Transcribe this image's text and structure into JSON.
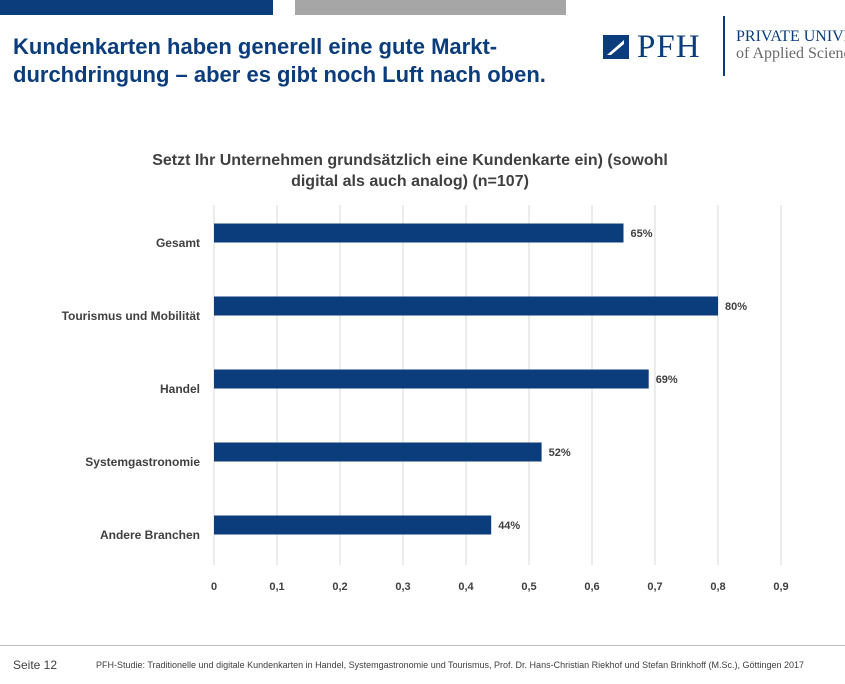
{
  "header": {
    "headline_line1": "Kundenkarten haben generell eine gute Markt-",
    "headline_line2": "durchdringung – aber es gibt noch Luft nach oben."
  },
  "logo": {
    "name": "PFH",
    "line1": "PRIVATE UNIVERSITY",
    "line2": "of Applied Sciences"
  },
  "colors": {
    "brand_blue": "#0b3d7c",
    "top_bar_gray": "#a6a6a6",
    "bar_fill": "#0b3d7c",
    "gridline": "#d9d9d9",
    "text": "#404040"
  },
  "chart_data": {
    "type": "bar",
    "orientation": "horizontal",
    "title_line1": "Setzt Ihr Unternehmen grundsätzlich eine Kundenkarte ein) (sowohl",
    "title_line2": "digital als auch analog) (n=107)",
    "categories": [
      "Gesamt",
      "Tourismus und Mobilität",
      "Handel",
      "Systemgastronomie",
      "Andere Branchen"
    ],
    "values": [
      0.65,
      0.8,
      0.69,
      0.52,
      0.44
    ],
    "data_labels": [
      "65%",
      "80%",
      "69%",
      "52%",
      "44%"
    ],
    "xlim": [
      0,
      0.9
    ],
    "x_ticks": [
      0,
      0.1,
      0.2,
      0.3,
      0.4,
      0.5,
      0.6,
      0.7,
      0.8,
      0.9
    ],
    "x_tick_labels": [
      "0",
      "0,1",
      "0,2",
      "0,3",
      "0,4",
      "0,5",
      "0,6",
      "0,7",
      "0,8",
      "0,9"
    ],
    "grid": true,
    "legend": "none"
  },
  "footer": {
    "page": "Seite 12",
    "source": "PFH-Studie: Traditionelle und digitale Kundenkarten in Handel, Systemgastronomie und Tourismus, Prof. Dr. Hans-Christian Riekhof und Stefan Brinkhoff (M.Sc.), Göttingen 2017"
  }
}
